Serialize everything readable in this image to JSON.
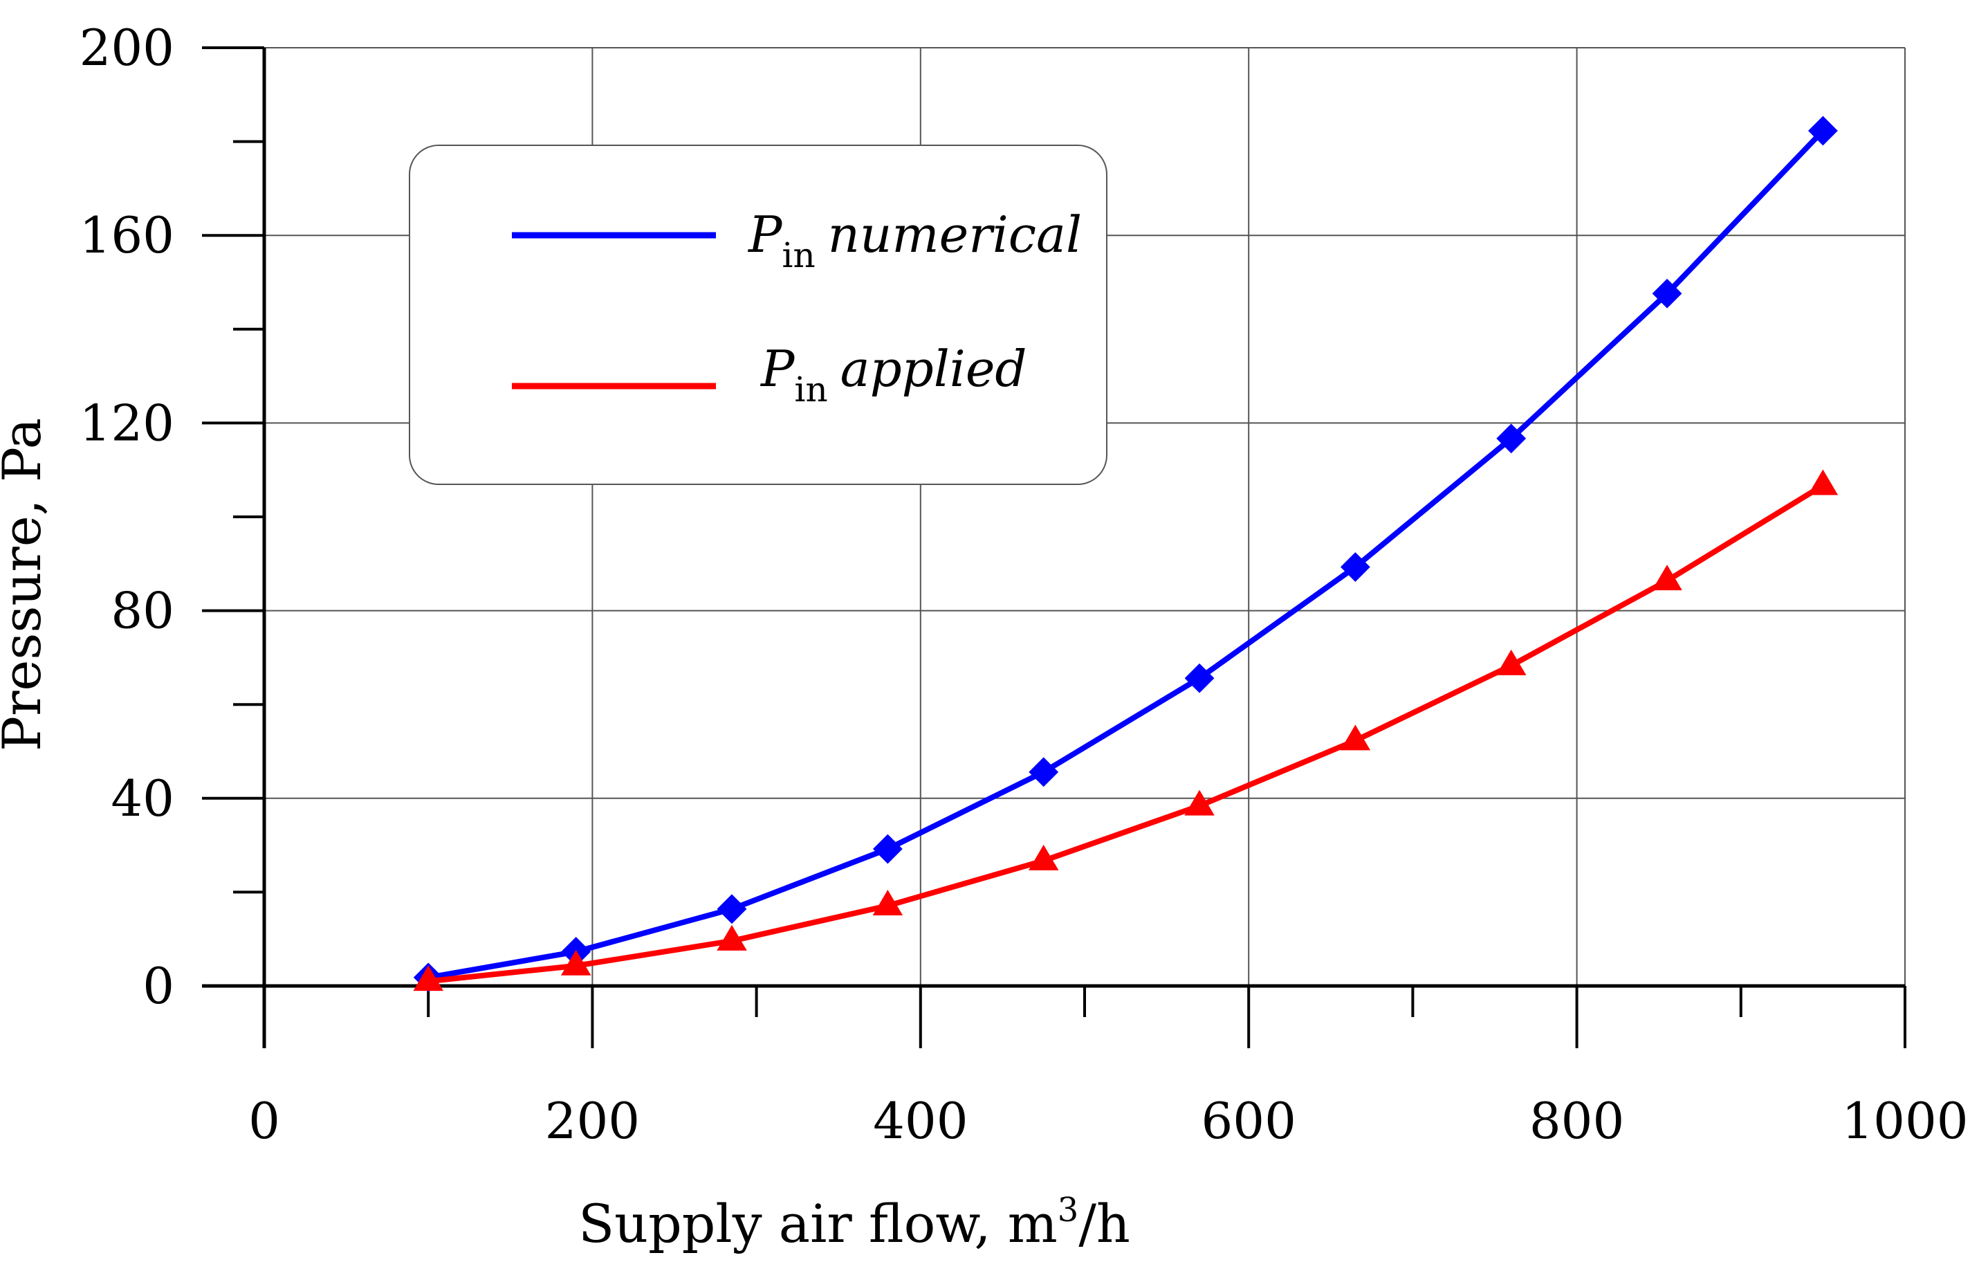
{
  "chart_data": {
    "type": "line",
    "title": "",
    "xlabel": "Supply air flow, m",
    "xlabel_superscript": "3",
    "xlabel_suffix": "/h",
    "ylabel": "Pressure, Pa",
    "xlim": [
      0,
      1000
    ],
    "ylim": [
      0,
      200
    ],
    "grid": true,
    "legend_position": "top-left",
    "x_ticks": [
      0,
      200,
      400,
      600,
      800,
      1000
    ],
    "y_ticks": [
      0,
      40,
      80,
      120,
      160,
      200
    ],
    "x_tick_labels": [
      "0",
      "200",
      "400",
      "600",
      "800",
      "1000"
    ],
    "y_tick_labels": [
      "0",
      "40",
      "80",
      "120",
      "160",
      "200"
    ],
    "x": [
      100,
      190,
      285,
      380,
      475,
      570,
      665,
      760,
      855,
      950
    ],
    "series": [
      {
        "name": "P",
        "name_subscript": "in",
        "name_suffix": "numerical",
        "color": "#0000ff",
        "marker": "diamond",
        "values": [
          1.8,
          7.3,
          16.4,
          29.2,
          45.6,
          65.6,
          89.3,
          116.7,
          147.6,
          182.3
        ]
      },
      {
        "name": "P",
        "name_subscript": "in",
        "name_suffix": "applied",
        "color": "#ff0000",
        "marker": "triangle",
        "values": [
          1.0,
          4.3,
          9.6,
          17.1,
          26.7,
          38.4,
          52.3,
          68.3,
          86.4,
          106.7
        ]
      }
    ]
  }
}
